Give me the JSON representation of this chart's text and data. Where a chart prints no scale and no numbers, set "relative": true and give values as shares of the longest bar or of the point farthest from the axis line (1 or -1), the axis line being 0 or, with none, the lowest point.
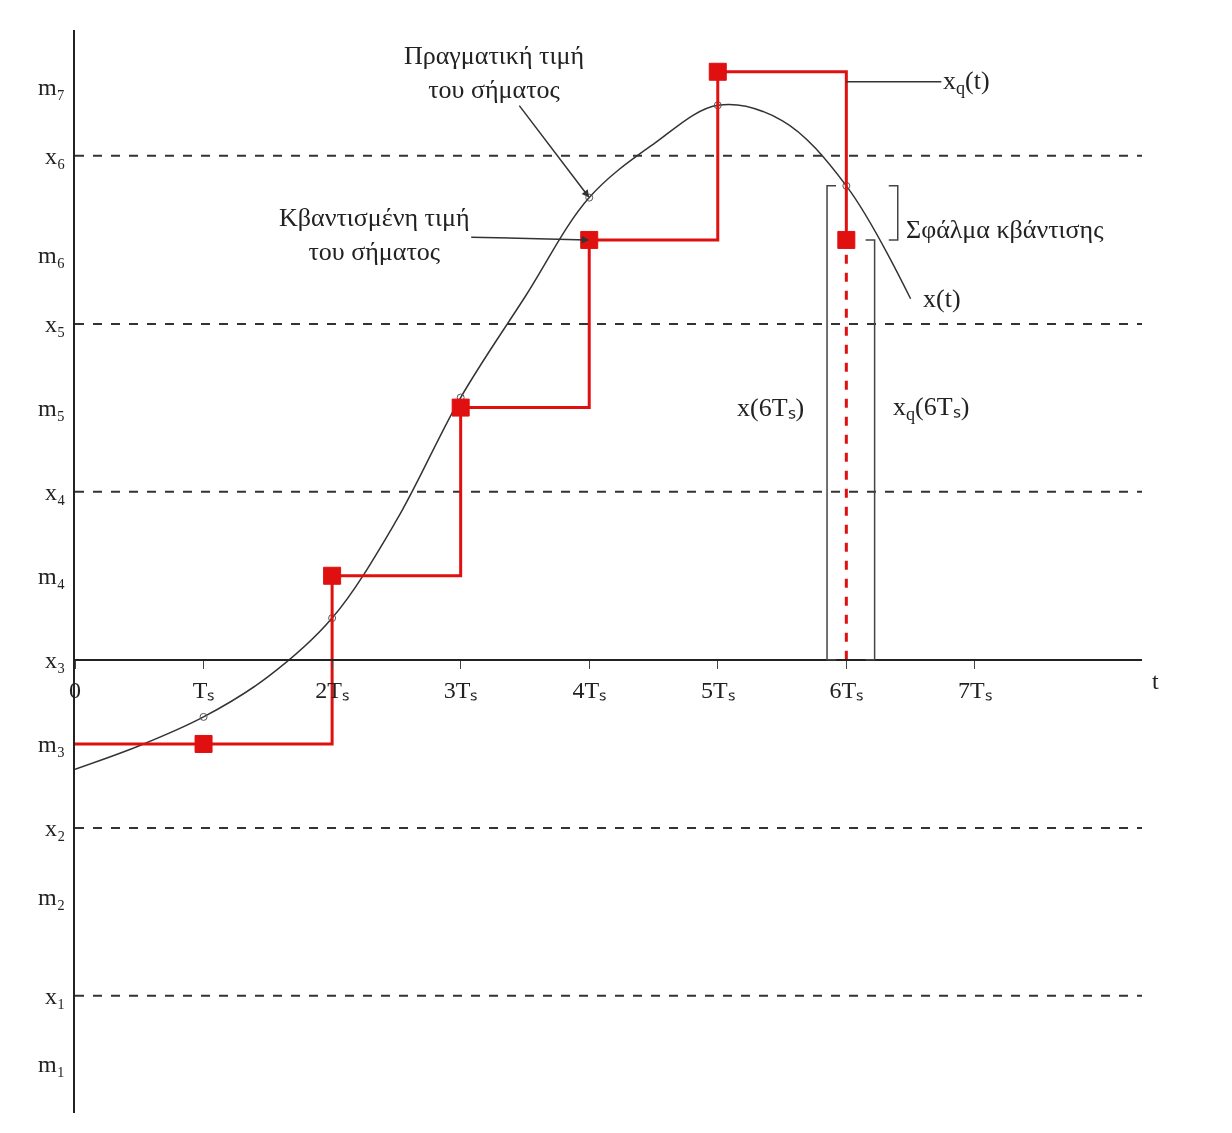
{
  "chart_data": {
    "type": "line",
    "relative": true,
    "xlabel": "t",
    "xlim": [
      0,
      8.3
    ],
    "xticks": [
      {
        "value": 0,
        "label": "0"
      },
      {
        "value": 1,
        "label": "Tₛ"
      },
      {
        "value": 2,
        "label": "2Tₛ"
      },
      {
        "value": 3,
        "label": "3Tₛ"
      },
      {
        "value": 4,
        "label": "4Tₛ"
      },
      {
        "value": 5,
        "label": "5Tₛ"
      },
      {
        "value": 6,
        "label": "6Tₛ"
      },
      {
        "value": 7,
        "label": "7Tₛ"
      }
    ],
    "grid": false,
    "series": [
      {
        "type": "line",
        "color": "#333333",
        "x": [
          0,
          0.5,
          1,
          1.5,
          2,
          2.5,
          3,
          3.5,
          4,
          4.5,
          5,
          5.5,
          6,
          6.5
        ],
        "values": [
          -0.186,
          -0.146,
          -0.097,
          -0.029,
          0.071,
          0.237,
          0.446,
          0.617,
          0.786,
          0.877,
          0.943,
          0.917,
          0.806,
          0.614
        ],
        "line_style": "solid",
        "marker": "none"
      },
      {
        "type": "scatter",
        "color": "#555555",
        "x": [
          1,
          2,
          3,
          4,
          5,
          6
        ],
        "values": [
          -0.097,
          0.071,
          0.446,
          0.786,
          0.943,
          0.806
        ],
        "marker": "circle"
      },
      {
        "type": "step",
        "color": "#e01010",
        "x": [
          0,
          2,
          3,
          4,
          5,
          6
        ],
        "values": [
          -0.143,
          0.143,
          0.429,
          0.714,
          1,
          0.714
        ],
        "line_style": "solid",
        "marker": "none"
      },
      {
        "type": "scatter",
        "color": "#e01010",
        "x": [
          1,
          2,
          3,
          4,
          5,
          6
        ],
        "values": [
          -0.143,
          0.143,
          0.429,
          0.714,
          1,
          0.714
        ],
        "marker": "square"
      },
      {
        "type": "line",
        "color": "#e01010",
        "x": [
          6,
          6
        ],
        "values": [
          0,
          0.714
        ],
        "line_style": "dashed",
        "marker": "none"
      }
    ],
    "ref_lines": [
      {
        "axis": "y",
        "value": -0.571,
        "label": "x₁",
        "color": "#333333",
        "line_style": "dashed"
      },
      {
        "axis": "y",
        "value": -0.286,
        "label": "x₂",
        "color": "#333333",
        "line_style": "dashed"
      },
      {
        "axis": "y",
        "value": 0.286,
        "label": "x₄",
        "color": "#333333",
        "line_style": "dashed"
      },
      {
        "axis": "y",
        "value": 0.571,
        "label": "x₅",
        "color": "#333333",
        "line_style": "dashed"
      },
      {
        "axis": "y",
        "value": 0.857,
        "label": "x₆",
        "color": "#333333",
        "line_style": "dashed"
      }
    ],
    "annotations": [
      {
        "text": "Πραγματική τιμή\nτου σήματος",
        "x": 4,
        "y": 0.786
      },
      "Κβαντισμένη τιμή\nτου σήματος",
      "x$_{q}$(t)",
      {
        "text": "x(t)",
        "x": 6.5,
        "y": 0.614
      },
      "Σφάλμα κβάντισης",
      {
        "text": "x(6Tₛ)",
        "x": 6,
        "y": 0.429
      },
      {
        "text": "x$_{q}$(6Tₛ)",
        "x": 6,
        "y": 0.429
      },
      "m₁",
      "m₂",
      "m₃",
      "m₄",
      "m₅",
      "m₆",
      "m₇",
      "x₃"
    ]
  }
}
